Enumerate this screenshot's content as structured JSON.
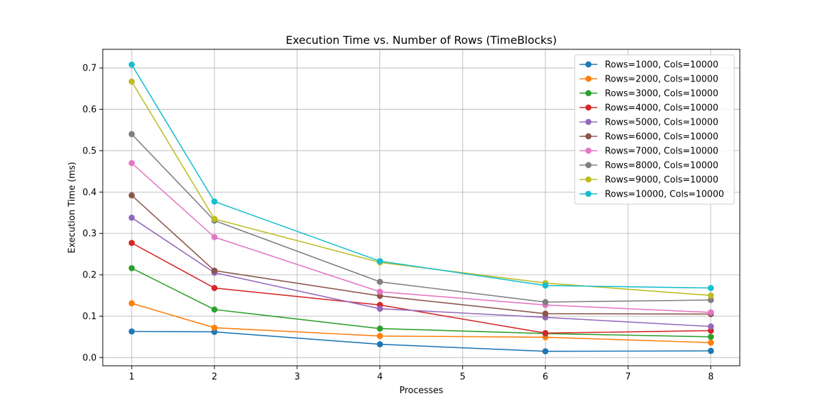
{
  "chart_data": {
    "type": "line",
    "title": "Execution Time vs. Number of Rows (TimeBlocks)",
    "xlabel": "Processes",
    "ylabel": "Execution Time (ms)",
    "xlim": [
      0.65,
      8.35
    ],
    "ylim": [
      -0.02,
      0.745
    ],
    "x": [
      1,
      2,
      4,
      6,
      8
    ],
    "xticks": [
      1,
      2,
      3,
      4,
      5,
      6,
      7,
      8
    ],
    "yticks": [
      0.0,
      0.1,
      0.2,
      0.3,
      0.4,
      0.5,
      0.6,
      0.7
    ],
    "ytick_labels": [
      "0.0",
      "0.1",
      "0.2",
      "0.3",
      "0.4",
      "0.5",
      "0.6",
      "0.7"
    ],
    "grid": true,
    "legend_position": "top-right",
    "series": [
      {
        "name": "Rows=1000, Cols=10000",
        "color": "#1f77b4",
        "values": [
          0.063,
          0.062,
          0.032,
          0.015,
          0.016
        ]
      },
      {
        "name": "Rows=2000, Cols=10000",
        "color": "#ff7f0e",
        "values": [
          0.131,
          0.072,
          0.052,
          0.049,
          0.036
        ]
      },
      {
        "name": "Rows=3000, Cols=10000",
        "color": "#2ca02c",
        "values": [
          0.216,
          0.116,
          0.07,
          0.058,
          0.05
        ]
      },
      {
        "name": "Rows=4000, Cols=10000",
        "color": "#d62728",
        "values": [
          0.277,
          0.168,
          0.127,
          0.059,
          0.065
        ]
      },
      {
        "name": "Rows=5000, Cols=10000",
        "color": "#9467bd",
        "values": [
          0.338,
          0.205,
          0.118,
          0.097,
          0.075
        ]
      },
      {
        "name": "Rows=6000, Cols=10000",
        "color": "#8c564b",
        "values": [
          0.392,
          0.21,
          0.149,
          0.106,
          0.105
        ]
      },
      {
        "name": "Rows=7000, Cols=10000",
        "color": "#e377c2",
        "values": [
          0.47,
          0.291,
          0.159,
          0.127,
          0.109
        ]
      },
      {
        "name": "Rows=8000, Cols=10000",
        "color": "#7f7f7f",
        "values": [
          0.54,
          0.331,
          0.183,
          0.134,
          0.139
        ]
      },
      {
        "name": "Rows=9000, Cols=10000",
        "color": "#bcbd22",
        "values": [
          0.667,
          0.335,
          0.23,
          0.18,
          0.15
        ]
      },
      {
        "name": "Rows=10000, Cols=10000",
        "color": "#17becf",
        "values": [
          0.708,
          0.377,
          0.233,
          0.174,
          0.168
        ]
      }
    ]
  }
}
